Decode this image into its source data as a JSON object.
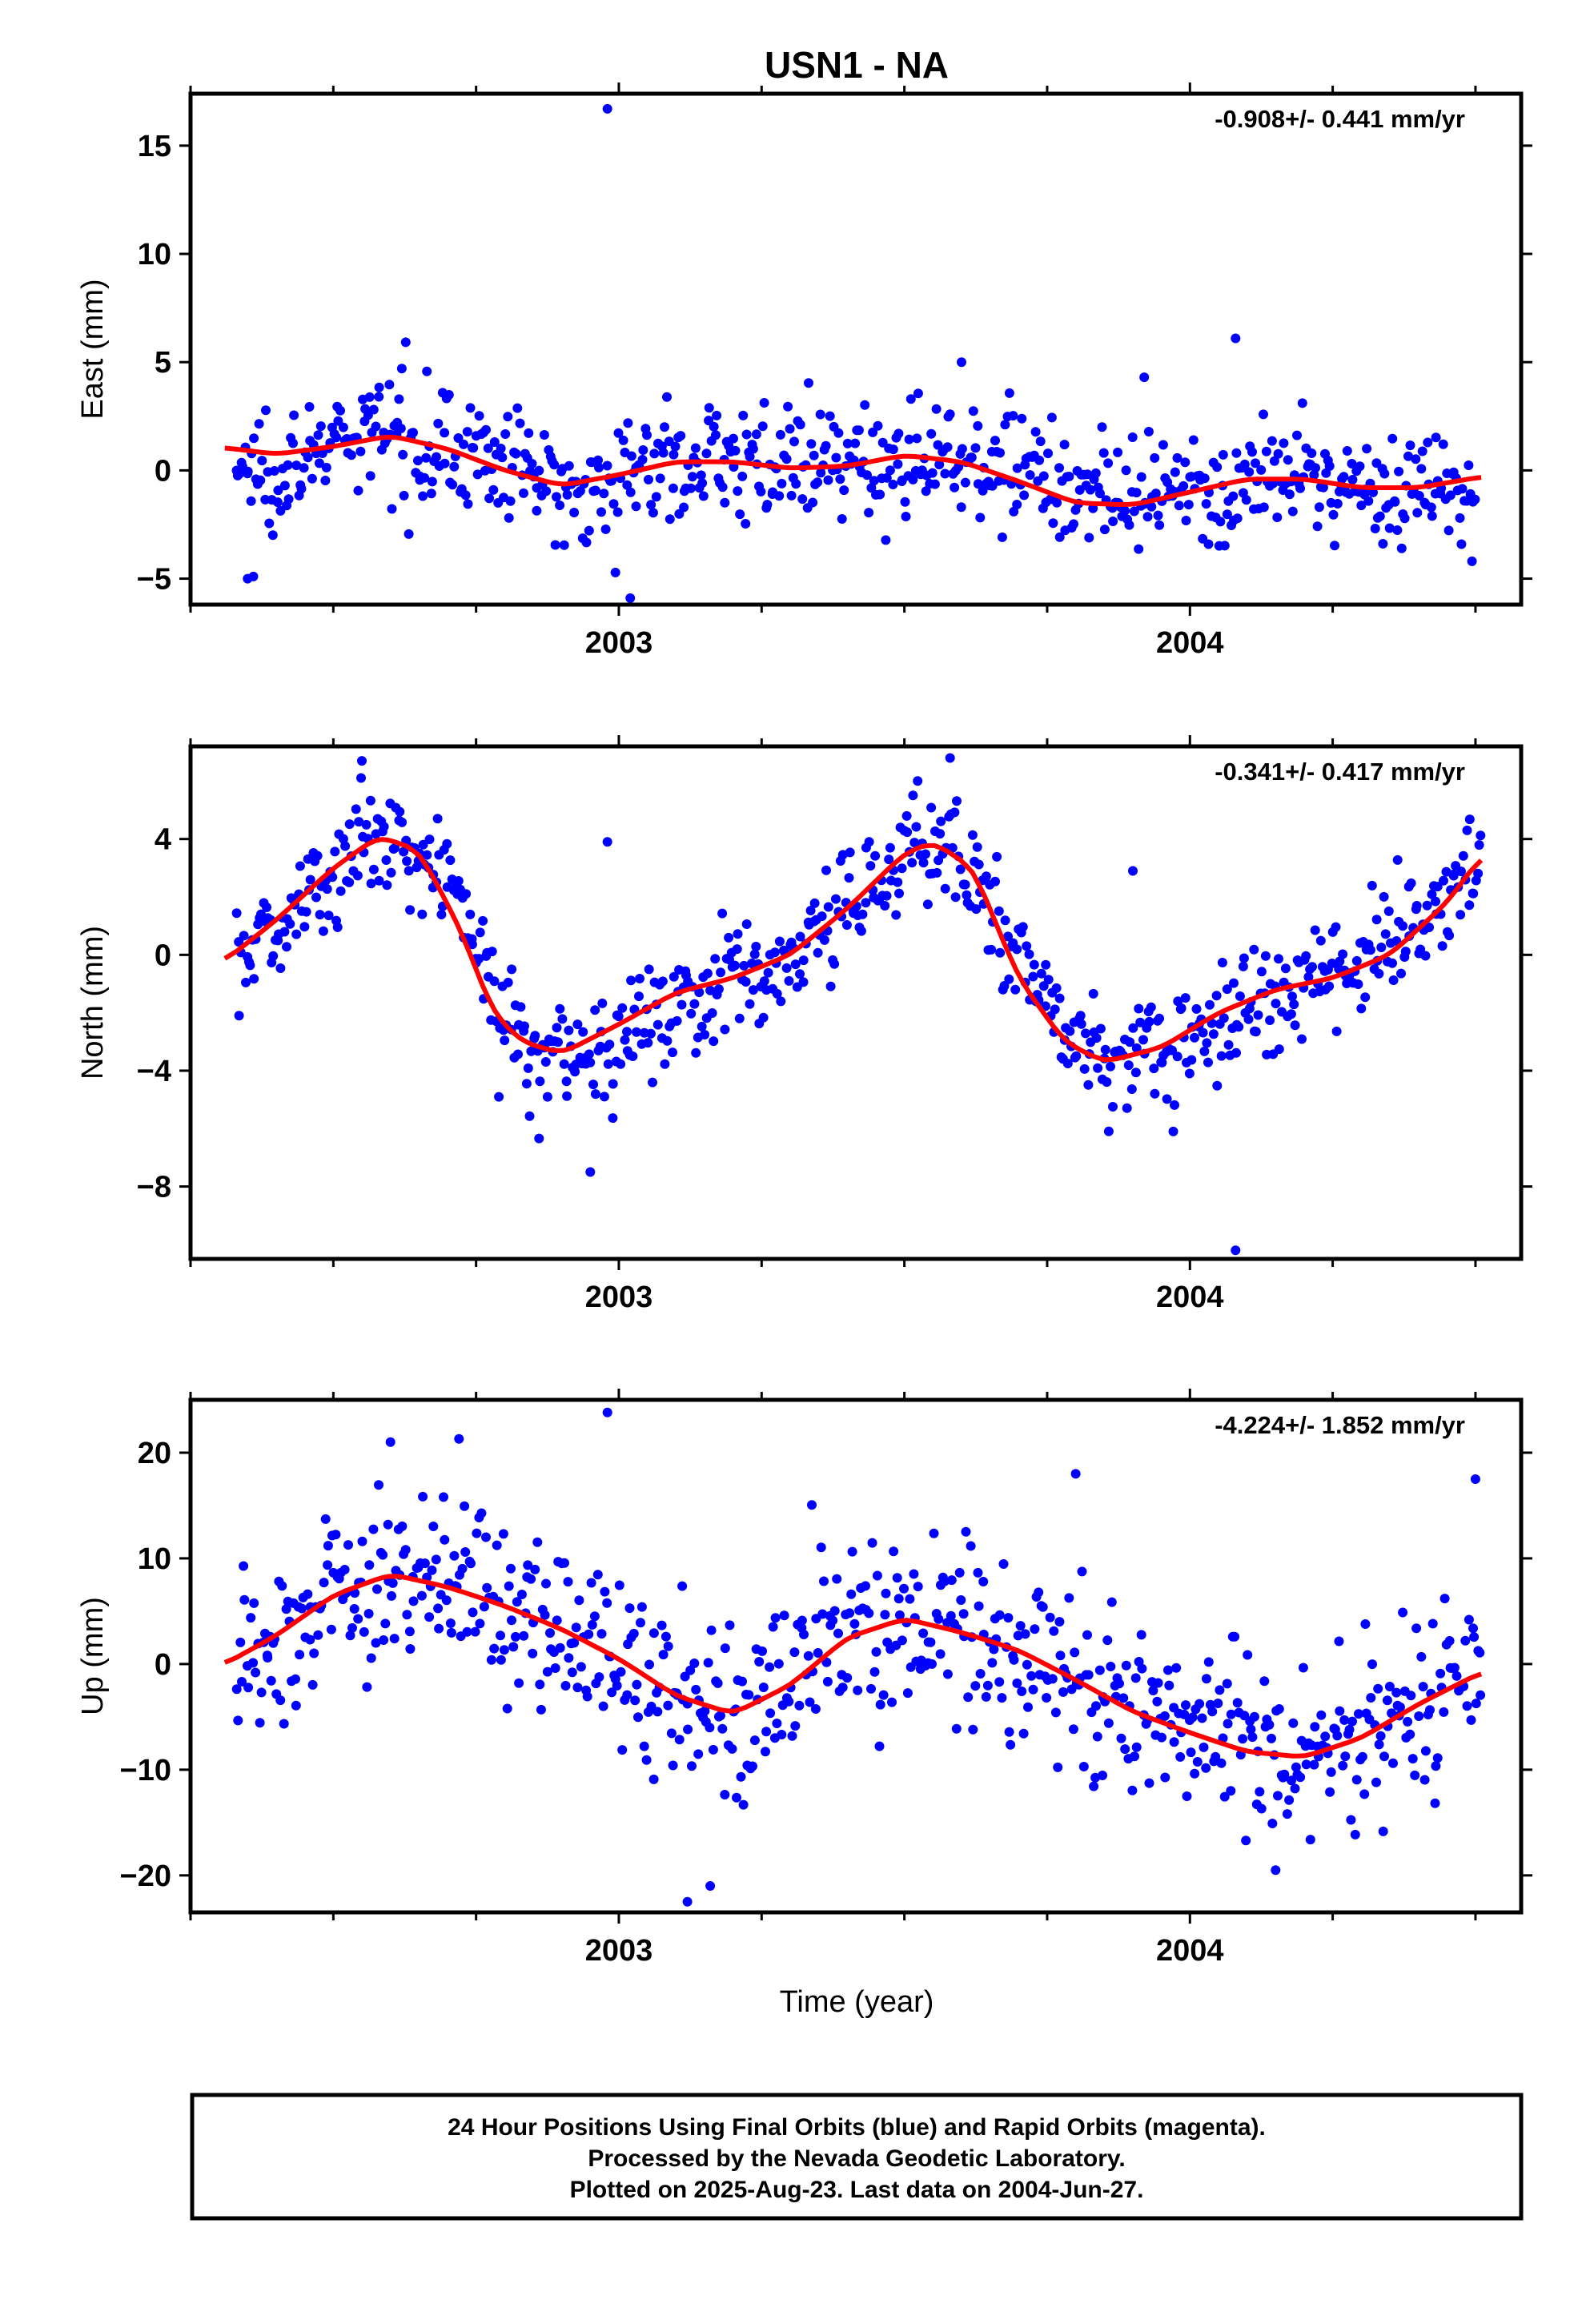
{
  "title": "USN1 - NA",
  "xlabel": "Time (year)",
  "colors": {
    "points": "#0000ff",
    "fit": "#ff0000",
    "axis": "#000000"
  },
  "chart_data": [
    {
      "type": "scatter",
      "ylabel": "East (mm)",
      "rate_text": "-0.908+/- 0.441 mm/yr",
      "xlim": [
        2002.25,
        2004.58
      ],
      "ylim": [
        -6.2,
        17.4
      ],
      "yticks": [
        -5,
        0,
        5,
        10,
        15
      ],
      "xticks": [
        2003,
        2004
      ],
      "grid": false,
      "series": [
        {
          "style": "points",
          "base": [
            [
              2002.33,
              0
            ],
            [
              2002.4,
              0.3
            ],
            [
              2002.5,
              1.0
            ],
            [
              2002.6,
              1.8
            ],
            [
              2002.7,
              1.2
            ],
            [
              2002.8,
              0.3
            ],
            [
              2002.9,
              -0.8
            ],
            [
              2003.0,
              -0.3
            ],
            [
              2003.1,
              0.5
            ],
            [
              2003.2,
              0.6
            ],
            [
              2003.3,
              0.2
            ],
            [
              2003.4,
              0.1
            ],
            [
              2003.5,
              0.5
            ],
            [
              2003.6,
              0.8
            ],
            [
              2003.7,
              0.4
            ],
            [
              2003.8,
              -0.8
            ],
            [
              2003.9,
              -1.6
            ],
            [
              2004.0,
              -1.4
            ],
            [
              2004.1,
              -0.6
            ],
            [
              2004.2,
              -0.4
            ],
            [
              2004.3,
              -0.8
            ],
            [
              2004.4,
              -0.9
            ],
            [
              2004.5,
              -0.4
            ]
          ],
          "noise": 1.3,
          "count": 700,
          "outliers": [
            [
              2002.98,
              16.7
            ],
            [
              2003.02,
              -5.9
            ],
            [
              2004.08,
              6.1
            ],
            [
              2003.92,
              4.3
            ],
            [
              2002.35,
              -5.0
            ],
            [
              2002.36,
              -4.9
            ],
            [
              2003.6,
              5.0
            ],
            [
              2002.62,
              4.7
            ]
          ]
        },
        {
          "style": "line",
          "name": "",
          "points": [
            [
              2002.31,
              1.05
            ],
            [
              2002.4,
              0.75
            ],
            [
              2002.5,
              1.1
            ],
            [
              2002.6,
              1.6
            ],
            [
              2002.7,
              1.0
            ],
            [
              2002.8,
              0.0
            ],
            [
              2002.9,
              -0.7
            ],
            [
              2003.0,
              -0.2
            ],
            [
              2003.1,
              0.4
            ],
            [
              2003.2,
              0.4
            ],
            [
              2003.3,
              0.1
            ],
            [
              2003.4,
              0.2
            ],
            [
              2003.5,
              0.7
            ],
            [
              2003.6,
              0.4
            ],
            [
              2003.7,
              -0.5
            ],
            [
              2003.8,
              -1.5
            ],
            [
              2003.9,
              -1.6
            ],
            [
              2004.0,
              -1.0
            ],
            [
              2004.1,
              -0.4
            ],
            [
              2004.2,
              -0.4
            ],
            [
              2004.3,
              -0.8
            ],
            [
              2004.4,
              -0.8
            ],
            [
              2004.51,
              -0.3
            ]
          ]
        }
      ]
    },
    {
      "type": "scatter",
      "ylabel": "North (mm)",
      "rate_text": "-0.341+/- 0.417 mm/yr",
      "xlim": [
        2002.25,
        2004.58
      ],
      "ylim": [
        -10.5,
        7.2
      ],
      "yticks": [
        -8,
        -4,
        0,
        4
      ],
      "xticks": [
        2003,
        2004
      ],
      "grid": false,
      "series": [
        {
          "style": "points",
          "base": [
            [
              2002.33,
              -0.2
            ],
            [
              2002.4,
              1.0
            ],
            [
              2002.5,
              3.0
            ],
            [
              2002.58,
              4.2
            ],
            [
              2002.65,
              3.5
            ],
            [
              2002.72,
              2.0
            ],
            [
              2002.78,
              -1.0
            ],
            [
              2002.83,
              -2.8
            ],
            [
              2002.9,
              -3.4
            ],
            [
              2003.0,
              -3.0
            ],
            [
              2003.1,
              -1.6
            ],
            [
              2003.2,
              -0.9
            ],
            [
              2003.3,
              -0.2
            ],
            [
              2003.4,
              1.5
            ],
            [
              2003.5,
              3.5
            ],
            [
              2003.55,
              3.8
            ],
            [
              2003.62,
              3.0
            ],
            [
              2003.7,
              0.0
            ],
            [
              2003.78,
              -2.5
            ],
            [
              2003.85,
              -3.6
            ],
            [
              2003.95,
              -3.3
            ],
            [
              2004.05,
              -2.2
            ],
            [
              2004.15,
              -1.2
            ],
            [
              2004.25,
              -0.7
            ],
            [
              2004.35,
              0.5
            ],
            [
              2004.45,
              2.0
            ],
            [
              2004.51,
              3.4
            ]
          ],
          "noise": 1.0,
          "count": 700,
          "outliers": [
            [
              2002.95,
              -7.5
            ],
            [
              2004.08,
              -10.2
            ],
            [
              2002.98,
              3.9
            ],
            [
              2003.9,
              2.9
            ],
            [
              2002.55,
              6.7
            ],
            [
              2003.58,
              6.8
            ]
          ]
        },
        {
          "style": "line",
          "name": "",
          "points": [
            [
              2002.31,
              -0.2
            ],
            [
              2002.4,
              1.2
            ],
            [
              2002.5,
              3.0
            ],
            [
              2002.58,
              4.1
            ],
            [
              2002.65,
              3.6
            ],
            [
              2002.72,
              1.0
            ],
            [
              2002.78,
              -2.0
            ],
            [
              2002.83,
              -3.0
            ],
            [
              2002.9,
              -3.4
            ],
            [
              2003.0,
              -2.4
            ],
            [
              2003.1,
              -1.3
            ],
            [
              2003.2,
              -0.8
            ],
            [
              2003.3,
              0.0
            ],
            [
              2003.4,
              1.6
            ],
            [
              2003.5,
              3.5
            ],
            [
              2003.55,
              3.9
            ],
            [
              2003.62,
              3.0
            ],
            [
              2003.7,
              -0.8
            ],
            [
              2003.78,
              -3.0
            ],
            [
              2003.85,
              -3.7
            ],
            [
              2003.95,
              -3.2
            ],
            [
              2004.05,
              -2.0
            ],
            [
              2004.15,
              -1.2
            ],
            [
              2004.25,
              -0.8
            ],
            [
              2004.35,
              0.0
            ],
            [
              2004.45,
              1.8
            ],
            [
              2004.51,
              3.4
            ]
          ]
        }
      ]
    },
    {
      "type": "scatter",
      "ylabel": "Up (mm)",
      "rate_text": "-4.224+/- 1.852 mm/yr",
      "xlim": [
        2002.25,
        2004.58
      ],
      "ylim": [
        -23.5,
        25
      ],
      "yticks": [
        -20,
        -10,
        0,
        10,
        20
      ],
      "xticks": [
        2003,
        2004
      ],
      "grid": false,
      "series": [
        {
          "style": "points",
          "base": [
            [
              2002.33,
              0
            ],
            [
              2002.4,
              2.5
            ],
            [
              2002.5,
              6.5
            ],
            [
              2002.6,
              8.5
            ],
            [
              2002.7,
              7.5
            ],
            [
              2002.8,
              5.5
            ],
            [
              2002.9,
              3.5
            ],
            [
              2003.0,
              0
            ],
            [
              2003.1,
              -3.5
            ],
            [
              2003.2,
              -4.5
            ],
            [
              2003.3,
              -1
            ],
            [
              2003.4,
              3
            ],
            [
              2003.5,
              4
            ],
            [
              2003.6,
              3
            ],
            [
              2003.7,
              1.5
            ],
            [
              2003.8,
              -1.5
            ],
            [
              2003.9,
              -4.5
            ],
            [
              2004.0,
              -6
            ],
            [
              2004.1,
              -8
            ],
            [
              2004.2,
              -8.5
            ],
            [
              2004.3,
              -6
            ],
            [
              2004.4,
              -3
            ],
            [
              2004.51,
              -1
            ]
          ],
          "noise": 4.2,
          "count": 700,
          "outliers": [
            [
              2002.98,
              23.8
            ],
            [
              2003.12,
              -22.5
            ],
            [
              2003.16,
              -21
            ],
            [
              2003.8,
              18
            ],
            [
              2002.6,
              21
            ],
            [
              2002.72,
              21.3
            ],
            [
              2004.15,
              -19.5
            ],
            [
              2004.5,
              17.5
            ]
          ]
        },
        {
          "style": "line",
          "name": "",
          "points": [
            [
              2002.31,
              0
            ],
            [
              2002.4,
              2.7
            ],
            [
              2002.5,
              6.5
            ],
            [
              2002.6,
              8.5
            ],
            [
              2002.7,
              7.3
            ],
            [
              2002.8,
              5.5
            ],
            [
              2002.9,
              3.3
            ],
            [
              2003.0,
              0.5
            ],
            [
              2003.1,
              -3.0
            ],
            [
              2003.2,
              -4.7
            ],
            [
              2003.3,
              -2.0
            ],
            [
              2003.4,
              2.5
            ],
            [
              2003.5,
              4.3
            ],
            [
              2003.6,
              3.0
            ],
            [
              2003.7,
              1.3
            ],
            [
              2003.8,
              -1.5
            ],
            [
              2003.9,
              -4.5
            ],
            [
              2004.0,
              -6.5
            ],
            [
              2004.1,
              -8.3
            ],
            [
              2004.2,
              -8.8
            ],
            [
              2004.3,
              -7.0
            ],
            [
              2004.4,
              -3.8
            ],
            [
              2004.51,
              -0.8
            ]
          ]
        }
      ]
    }
  ],
  "footer": {
    "line1": "24 Hour Positions Using Final Orbits (blue) and Rapid Orbits (magenta).",
    "line2": "Processed by the Nevada Geodetic Laboratory.",
    "line3": "Plotted on 2025-Aug-23. Last data on 2004-Jun-27."
  }
}
